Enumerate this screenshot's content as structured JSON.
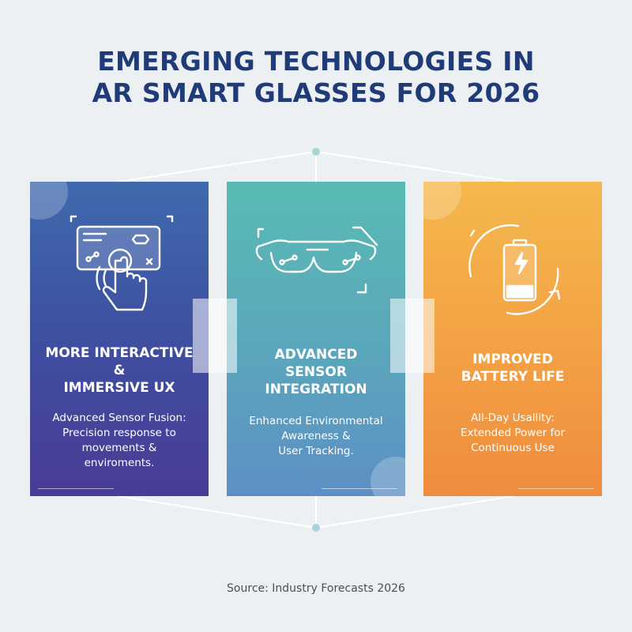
{
  "title": {
    "line1": "EMERGING TECHNOLOGIES IN",
    "line2": "AR SMART GLASSES FOR 2026"
  },
  "cards": [
    {
      "icon": "touch-hand-icon",
      "title_lines": [
        "MORE INTERACTIVE &",
        "IMMERSIVE UX"
      ],
      "desc_lines": [
        "Advanced Sensor Fusion:",
        "Precision response to",
        "movements &",
        "enviroments."
      ]
    },
    {
      "icon": "smart-glasses-icon",
      "title_lines": [
        "ADVANCED",
        "SENSOR",
        "INTEGRATION"
      ],
      "desc_lines": [
        "Enhanced Environmental",
        "Awareness &",
        "User Tracking."
      ]
    },
    {
      "icon": "battery-charging-icon",
      "title_lines": [
        "IMPROVED",
        "BATTERY LIFE"
      ],
      "desc_lines": [
        "All-Day Usallity:",
        "Extended Power for",
        "Continuous Use"
      ]
    }
  ],
  "source": "Source: Industry Forecasts 2026",
  "colors": {
    "title": "#1f3b78",
    "card1": "#3e4fa0",
    "card2": "#5aa8bb",
    "card3": "#f3a044",
    "background": "#edf0f3"
  }
}
